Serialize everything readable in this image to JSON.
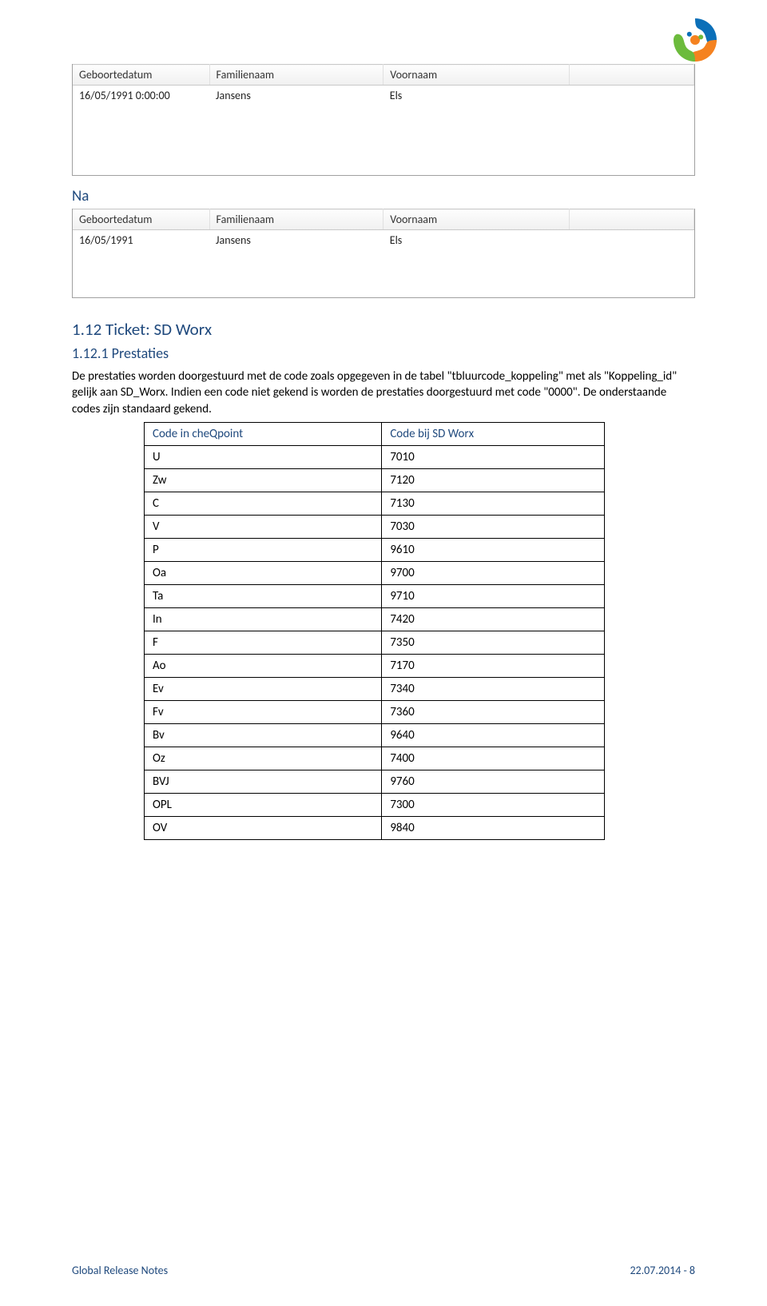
{
  "table1": {
    "columns": [
      "Geboortedatum",
      "Familienaam",
      "Voornaam",
      ""
    ],
    "rows": [
      [
        "16/05/1991 0:00:00",
        "Jansens",
        "Els",
        ""
      ]
    ]
  },
  "na_label": "Na",
  "table2": {
    "columns": [
      "Geboortedatum",
      "Familienaam",
      "Voornaam",
      ""
    ],
    "rows": [
      [
        "16/05/1991",
        "Jansens",
        "Els",
        ""
      ]
    ]
  },
  "section": {
    "h2": "1.12  Ticket: SD Worx",
    "h3": "1.12.1 Prestaties",
    "body": "De prestaties worden doorgestuurd met de code zoals opgegeven in de tabel \"tbluurcode_koppeling\" met als \"Koppeling_id\" gelijk aan SD_Worx. Indien een code niet gekend is worden de prestaties doorgestuurd met code \"0000\". De onderstaande codes zijn standaard gekend."
  },
  "code_table": {
    "headers": [
      "Code in cheQpoint",
      "Code bij SD Worx"
    ],
    "rows": [
      [
        "U",
        "7010"
      ],
      [
        "Zw",
        "7120"
      ],
      [
        "C",
        "7130"
      ],
      [
        "V",
        "7030"
      ],
      [
        "P",
        "9610"
      ],
      [
        "Oa",
        "9700"
      ],
      [
        "Ta",
        "9710"
      ],
      [
        "In",
        "7420"
      ],
      [
        "F",
        "7350"
      ],
      [
        "Ao",
        "7170"
      ],
      [
        "Ev",
        "7340"
      ],
      [
        "Fv",
        "7360"
      ],
      [
        "Bv",
        "9640"
      ],
      [
        "Oz",
        "7400"
      ],
      [
        "BVJ",
        "9760"
      ],
      [
        "OPL",
        "7300"
      ],
      [
        "OV",
        "9840"
      ]
    ]
  },
  "footer": {
    "left": "Global Release Notes",
    "right": "22.07.2014 - 8"
  },
  "colors": {
    "heading": "#1f497d",
    "body": "#000000",
    "table_border": "#000000",
    "grid_header_bg_top": "#fdfdfd",
    "grid_header_bg_bottom": "#f0f0f0",
    "logo_blue": "#0b6fb8",
    "logo_green": "#6cbb3c",
    "logo_orange": "#f58220"
  }
}
